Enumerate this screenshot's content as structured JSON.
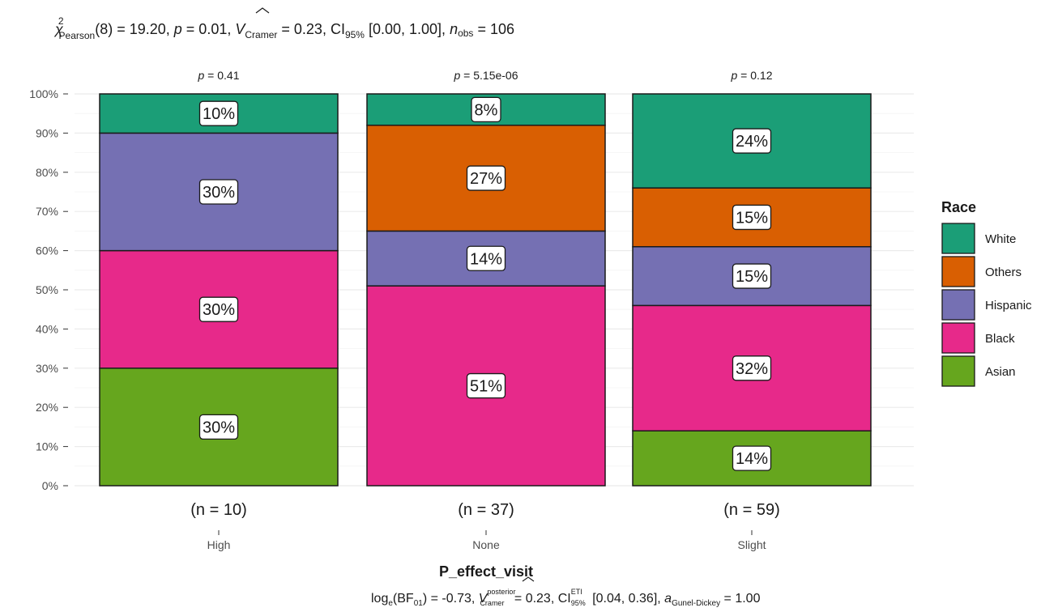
{
  "chart_data": {
    "type": "bar",
    "stacked": "percent",
    "subtitle_parts": {
      "chi": "χ",
      "chi_sup": "2",
      "chi_sub": "Pearson",
      "df": "(8) = 19.20, ",
      "p": "p",
      "p_val": " = 0.01, ",
      "v": "V",
      "v_sub": "Cramer",
      "v_val": " = 0.23, CI",
      "ci_sub": "95%",
      "ci_val": " [0.00, 1.00], ",
      "n": "n",
      "n_sub": "obs",
      "n_val": " = 106"
    },
    "caption_parts": {
      "log": "log",
      "log_sub": "e",
      "bf": "(BF",
      "bf_sub": "01",
      "bf_val": ") = -0.73, ",
      "v": "V",
      "v_sup": "posterior",
      "v_sub": "Cramer",
      "v_val": " = 0.23, CI",
      "ci_sup": "ETI",
      "ci_sub": "95%",
      "ci_val": " [0.04, 0.36], ",
      "a": "a",
      "a_sub": "Gunel-Dickey",
      "a_val": " = 1.00"
    },
    "xlabel": "P_effect_visit",
    "ylabel": "",
    "ylim": [
      0,
      100
    ],
    "y_ticks": [
      "0%",
      "10%",
      "20%",
      "30%",
      "40%",
      "50%",
      "60%",
      "70%",
      "80%",
      "90%",
      "100%"
    ],
    "categories": [
      "High",
      "None",
      "Slight"
    ],
    "n_labels": [
      "(n = 10)",
      "(n = 37)",
      "(n = 59)"
    ],
    "p_labels": [
      "p = 0.41",
      "p = 5.15e-06",
      "p = 0.12"
    ],
    "legend": {
      "title": "Race",
      "position": "right",
      "items": [
        {
          "name": "White",
          "color": "#1b9e77"
        },
        {
          "name": "Others",
          "color": "#d95f02"
        },
        {
          "name": "Hispanic",
          "color": "#7570b3"
        },
        {
          "name": "Black",
          "color": "#e7298a"
        },
        {
          "name": "Asian",
          "color": "#66a61e"
        }
      ]
    },
    "series": [
      {
        "name": "Asian",
        "color": "#66a61e",
        "values": [
          30,
          0,
          14
        ],
        "labels": [
          "30%",
          "",
          "14%"
        ]
      },
      {
        "name": "Black",
        "color": "#e7298a",
        "values": [
          30,
          51,
          32
        ],
        "labels": [
          "30%",
          "51%",
          "32%"
        ]
      },
      {
        "name": "Hispanic",
        "color": "#7570b3",
        "values": [
          30,
          14,
          15
        ],
        "labels": [
          "30%",
          "14%",
          "15%"
        ]
      },
      {
        "name": "Others",
        "color": "#d95f02",
        "values": [
          0,
          27,
          15
        ],
        "labels": [
          "",
          "27%",
          "15%"
        ]
      },
      {
        "name": "White",
        "color": "#1b9e77",
        "values": [
          10,
          8,
          24
        ],
        "labels": [
          "10%",
          "8%",
          "24%"
        ]
      }
    ],
    "grid": true
  }
}
